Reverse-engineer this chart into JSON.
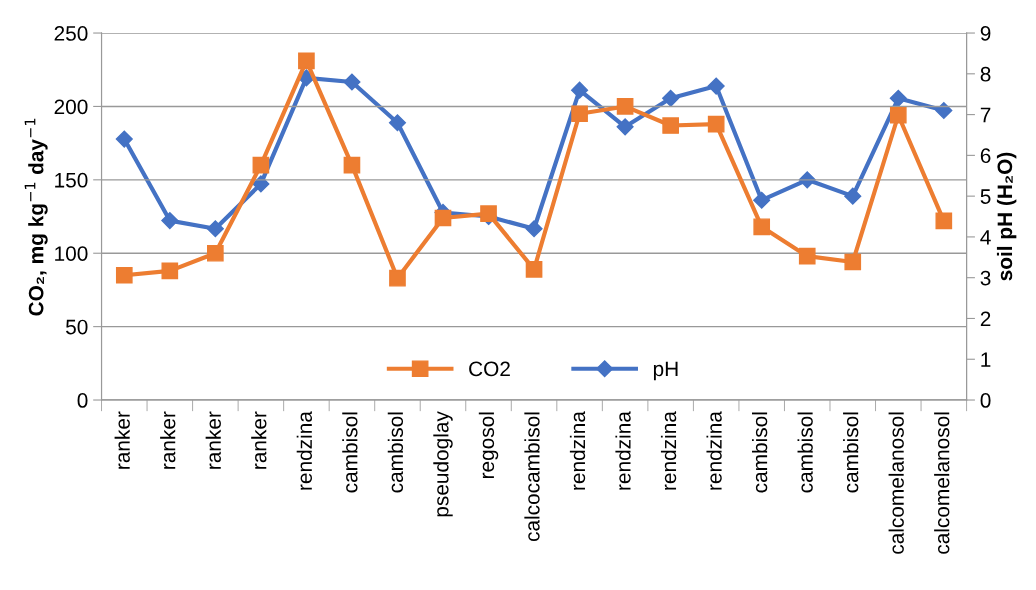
{
  "chart_data": {
    "type": "line",
    "categories": [
      "ranker",
      "ranker",
      "ranker",
      "ranker",
      "rendzina",
      "cambisol",
      "cambisol",
      "pseudoglay",
      "regosol",
      "calcocambisol",
      "rendzina",
      "rendzina",
      "rendzina",
      "rendzina",
      "cambisol",
      "cambisol",
      "cambisol",
      "calcomelanosol",
      "calcomelanosol"
    ],
    "series": [
      {
        "name": "CO2",
        "color": "#ed7d31",
        "marker": "square",
        "values": [
          85,
          88,
          100,
          160,
          231,
          160,
          83,
          124,
          127,
          89,
          195,
          200,
          187,
          188,
          118,
          98,
          94,
          194,
          122
        ]
      },
      {
        "name": "pH",
        "color": "#4472c4",
        "marker": "diamond",
        "axis": "y2",
        "values": [
          6.4,
          4.4,
          4.2,
          5.3,
          7.9,
          7.8,
          6.8,
          4.6,
          4.5,
          4.2,
          7.6,
          6.7,
          7.4,
          7.7,
          4.9,
          5.4,
          5.0,
          7.4,
          7.1
        ]
      }
    ],
    "ylabel": "CO₂, mg kg$^{−1}$ day$^{−1}$",
    "y2label": "soil pH (H₂O)",
    "ylim": [
      0,
      250
    ],
    "yticks": [
      0,
      50,
      100,
      150,
      200,
      250
    ],
    "y2lim": [
      0,
      9
    ],
    "y2ticks": [
      0,
      1,
      2,
      3,
      4,
      5,
      6,
      7,
      8,
      9
    ],
    "grid": "y",
    "legend": "bottom",
    "line_style": "solid"
  }
}
